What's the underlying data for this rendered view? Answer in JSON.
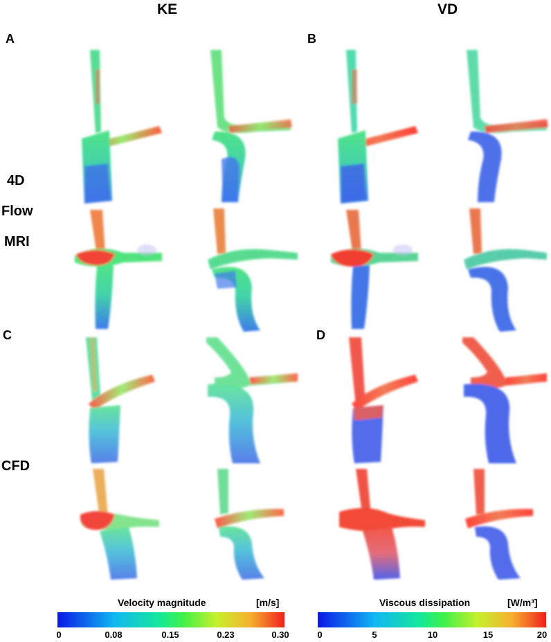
{
  "titles": {
    "left": "KE",
    "right": "VD"
  },
  "panels": {
    "a": "A",
    "b": "B",
    "c": "C",
    "d": "D"
  },
  "row_labels": {
    "mri_1": "4D",
    "mri_2": "Flow",
    "mri_3": "MRI",
    "cfd": "CFD"
  },
  "colorbars": {
    "velocity": {
      "label": "Velocity magnitude",
      "unit": "[m/s]",
      "ticks": [
        "0",
        "0.08",
        "0.15",
        "0.23",
        "0.30"
      ]
    },
    "viscous": {
      "label": "Viscous dissipation",
      "unit": "[W/m³]",
      "ticks": [
        "0",
        "5",
        "10",
        "15",
        "20"
      ]
    }
  },
  "colors": {
    "low": "#0a18e6",
    "mid": "#3ef04a",
    "high": "#f0201d"
  }
}
